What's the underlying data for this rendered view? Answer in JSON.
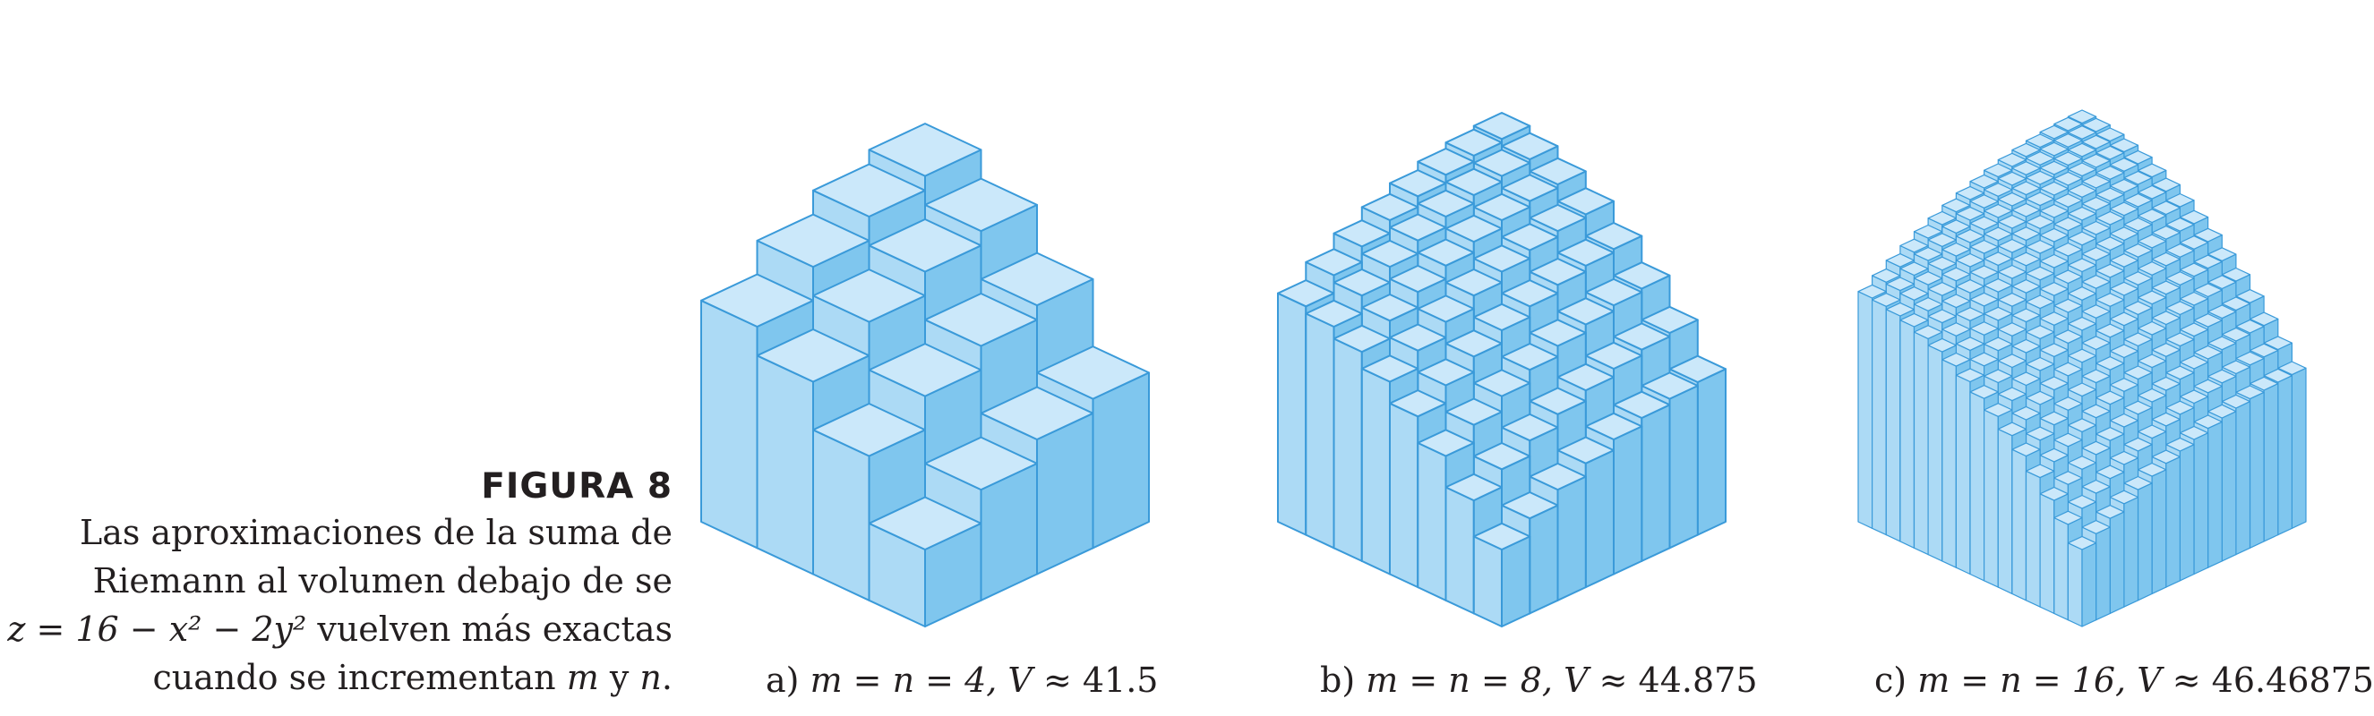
{
  "figure": {
    "label": "FIGURA 8",
    "caption_line1": "Las aproximaciones de la suma de",
    "caption_line2": "Riemann al volumen debajo de se",
    "caption_eq": "z = 16 − x² − 2y²",
    "caption_line3_rest": " vuelven más exactas",
    "caption_line4_pre": "cuando se incrementan ",
    "caption_line4_m": "m",
    "caption_line4_y": " y ",
    "caption_line4_n": "n",
    "caption_line4_end": "."
  },
  "colors": {
    "top": "#cbe8fa",
    "left": "#acdaf5",
    "right": "#7fc6ee",
    "edge": "#3a9ad9"
  },
  "panels": [
    {
      "prefix": "a) ",
      "mn": "m = n = 4, ",
      "vsym": "V",
      "approx": " ≈ 41.5"
    },
    {
      "prefix": "b) ",
      "mn": "m = n = 8, ",
      "vsym": "V",
      "approx": " ≈ 44.875"
    },
    {
      "prefix": "c) ",
      "mn": "m = n = 16, ",
      "vsym": "V",
      "approx": " ≈ 46.46875"
    }
  ],
  "chart_data": [
    {
      "type": "3d-bar",
      "function": "z = 16 - x^2 - 2y^2",
      "domain_x": [
        0,
        2
      ],
      "domain_y": [
        0,
        2
      ],
      "m": 4,
      "n": 4,
      "sample": "upper-right corner",
      "volume_approx": 41.5
    },
    {
      "type": "3d-bar",
      "function": "z = 16 - x^2 - 2y^2",
      "domain_x": [
        0,
        2
      ],
      "domain_y": [
        0,
        2
      ],
      "m": 8,
      "n": 8,
      "sample": "upper-right corner",
      "volume_approx": 44.875
    },
    {
      "type": "3d-bar",
      "function": "z = 16 - x^2 - 2y^2",
      "domain_x": [
        0,
        2
      ],
      "domain_y": [
        0,
        2
      ],
      "m": 16,
      "n": 16,
      "sample": "upper-right corner",
      "volume_approx": 46.46875
    }
  ]
}
